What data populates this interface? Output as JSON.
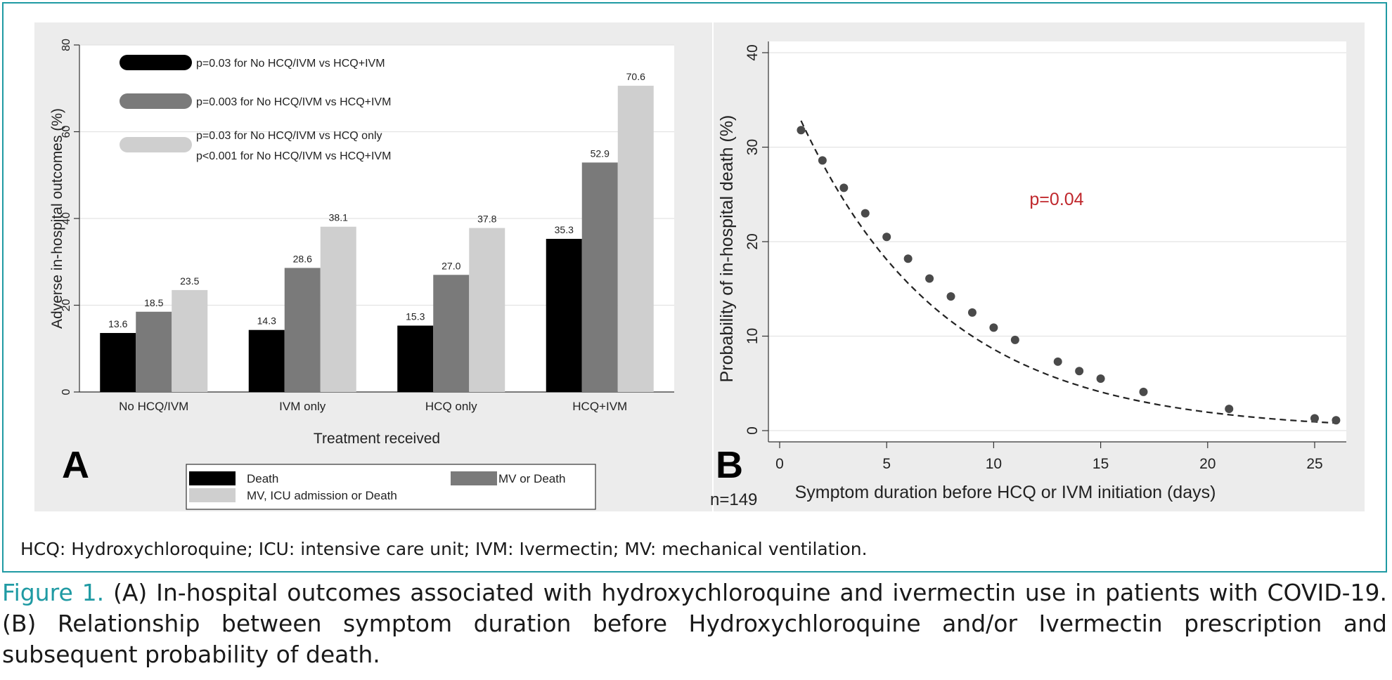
{
  "colors": {
    "frame": "#1f9aa3",
    "panel_bg": "#ececec",
    "plot_bg": "#ffffff",
    "death": "#000000",
    "mv_or_death": "#7a7a7a",
    "mv_icu_or_death": "#cfcfcf",
    "pvalue_red": "#c0282d",
    "caption_label": "#1f9aa3"
  },
  "footnote": "HCQ: Hydroxychloroquine; ICU: intensive care unit; IVM: Ivermectin; MV: mechanical ventilation.",
  "caption": {
    "label": "Figure 1.",
    "text": " (A) In-hospital outcomes associated with hydroxychloroquine and ivermectin use in patients with COVID-19. (B) Relationship between symptom duration before Hydroxychloroquine and/or Ivermectin prescription and subsequent probability of death."
  },
  "chart_data": [
    {
      "type": "bar",
      "panel_label": "A",
      "xlabel": "Treatment received",
      "ylabel": "Adverse in-hospital outcomes (%)",
      "ylim": [
        0,
        80
      ],
      "yticks": [
        0,
        20,
        40,
        60,
        80
      ],
      "grid": true,
      "categories": [
        "No HCQ/IVM",
        "IVM only",
        "HCQ only",
        "HCQ+IVM"
      ],
      "series": [
        {
          "name": "Death",
          "color": "#000000",
          "values": [
            13.6,
            14.3,
            15.3,
            35.3
          ],
          "labels": [
            "13.6",
            "14.3",
            "15.3",
            "35.3"
          ]
        },
        {
          "name": "MV or Death",
          "color": "#7a7a7a",
          "values": [
            18.5,
            28.6,
            27.0,
            52.9
          ],
          "labels": [
            "18.5",
            "28.6",
            "27.0",
            "52.9"
          ]
        },
        {
          "name": "MV, ICU admission or Death",
          "color": "#cfcfcf",
          "values": [
            23.5,
            38.1,
            37.8,
            70.6
          ],
          "labels": [
            "23.5",
            "38.1",
            "37.8",
            "70.6"
          ]
        }
      ],
      "pvalue_legend": [
        {
          "color": "#000000",
          "lines": [
            "p=0.03 for No HCQ/IVM vs HCQ+IVM"
          ]
        },
        {
          "color": "#7a7a7a",
          "lines": [
            "p=0.003 for No HCQ/IVM vs HCQ+IVM"
          ]
        },
        {
          "color": "#cfcfcf",
          "lines": [
            "p=0.03 for No HCQ/IVM vs HCQ only",
            "p<0.001 for No HCQ/IVM vs HCQ+IVM"
          ]
        }
      ],
      "legend_position": "bottom"
    },
    {
      "type": "scatter",
      "panel_label": "B",
      "xlabel": "Symptom duration before HCQ or IVM initiation (days)",
      "ylabel": "Probability of in-hospital death (%)",
      "xlim": [
        0,
        26
      ],
      "ylim": [
        0,
        40
      ],
      "xticks": [
        0,
        5,
        10,
        15,
        20,
        25
      ],
      "yticks": [
        0,
        10,
        20,
        30,
        40
      ],
      "grid": true,
      "annotation": "p=0.04",
      "n_label": "n=149",
      "points": [
        {
          "x": 1,
          "y": 31.8
        },
        {
          "x": 2,
          "y": 28.6
        },
        {
          "x": 3,
          "y": 25.7
        },
        {
          "x": 4,
          "y": 23.0
        },
        {
          "x": 5,
          "y": 20.5
        },
        {
          "x": 6,
          "y": 18.2
        },
        {
          "x": 7,
          "y": 16.1
        },
        {
          "x": 8,
          "y": 14.2
        },
        {
          "x": 9,
          "y": 12.5
        },
        {
          "x": 10,
          "y": 10.9
        },
        {
          "x": 11,
          "y": 9.6
        },
        {
          "x": 13,
          "y": 7.3
        },
        {
          "x": 14,
          "y": 6.3
        },
        {
          "x": 15,
          "y": 5.5
        },
        {
          "x": 17,
          "y": 4.1
        },
        {
          "x": 21,
          "y": 2.3
        },
        {
          "x": 25,
          "y": 1.3
        },
        {
          "x": 26,
          "y": 1.1
        }
      ],
      "fit": {
        "style": "dashed",
        "x": [
          1,
          26
        ],
        "y": [
          32.8,
          0.8
        ]
      }
    }
  ]
}
